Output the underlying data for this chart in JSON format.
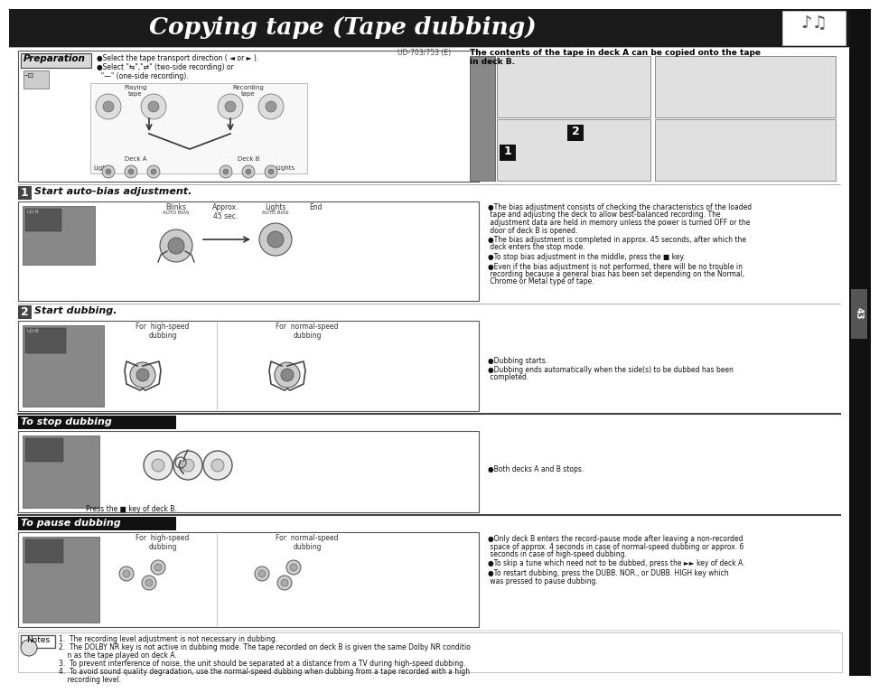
{
  "page_bg": "#ffffff",
  "header_bg": "#1a1a1a",
  "header_text": "Copying tape (Tape dubbing)",
  "model_text": "UD-703/753 (E)",
  "prep_title": "Preparation",
  "prep_bullet1": "●Select the tape transport direction ( ◄ or ► ).",
  "prep_bullet2": "●Select \"⇆\",\"⇄\" (two-side recording) or",
  "prep_bullet3": "  \"—\" (one-side recording).",
  "prep_caption": "The contents of the tape in deck A can be copied onto the tape\nin deck B.",
  "step1_num": "1",
  "step1_title": "Start auto-bias adjustment.",
  "step1_b1_lines": [
    "●The bias adjustment consists of checking the characteristics of the loaded",
    " tape and adjusting the deck to allow best-balanced recording. The",
    " adjustment data are held in memory unless the power is turned OFF or the",
    " door of deck B is opened."
  ],
  "step1_b2_lines": [
    "●The bias adjustment is completed in approx. 45 seconds, after which the",
    " deck enters the stop mode."
  ],
  "step1_b3_lines": [
    "●To stop bias adjustment in the middle, press the ■ key."
  ],
  "step1_b4_lines": [
    "●Even if the bias adjustment is not performed, there will be no trouble in",
    " recording because a general bias has been set depending on the Normal,",
    " Chrome or Metal type of tape."
  ],
  "step2_num": "2",
  "step2_title": "Start dubbing.",
  "step2_label1": "For  high-speed\ndubbing",
  "step2_label2": "For  normal-speed\ndubbing",
  "step2_b1": "●Dubbing starts.",
  "step2_b2_lines": [
    "●Dubbing ends automatically when the side(s) to be dubbed has been",
    " completed."
  ],
  "stop_title": "To stop dubbing",
  "stop_caption": "Press the ■ key of deck B.",
  "stop_bullet": "●Both decks A and B stops.",
  "pause_title": "To pause dubbing",
  "pause_label1": "For  high-speed\ndubbing",
  "pause_label2": "For  normal-speed\ndubbing",
  "pause_b1_lines": [
    "●Only deck B enters the record-pause mode after leaving a non-recorded",
    " space of approx. 4 seconds in case of normal-speed dubbing or approx. 6",
    " seconds in case of high-speed dubbing."
  ],
  "pause_b2_lines": [
    "●To skip a tune which need not to be dubbed, press the ►► key of deck A."
  ],
  "pause_b3_lines": [
    "●To restart dubbing, press the DUBB. NOR., or DUBB. HIGH key which",
    " was pressed to pause dubbing."
  ],
  "notes_title": "Notes",
  "notes": [
    "1.  The recording level adjustment is not necessary in dubbing.",
    "2.  The DOLBY NR key is not active in dubbing mode. The tape recorded on deck B is given the same Dolby NR condition as the tape played on deck A.",
    "3.  To prevent interference of noise, the unit should be separated at a distance from a TV during high-speed dubbing.",
    "4.  To avoid sound quality degradation, use the normal-speed dubbing when dubbing from a tape recorded with a high recording level."
  ]
}
